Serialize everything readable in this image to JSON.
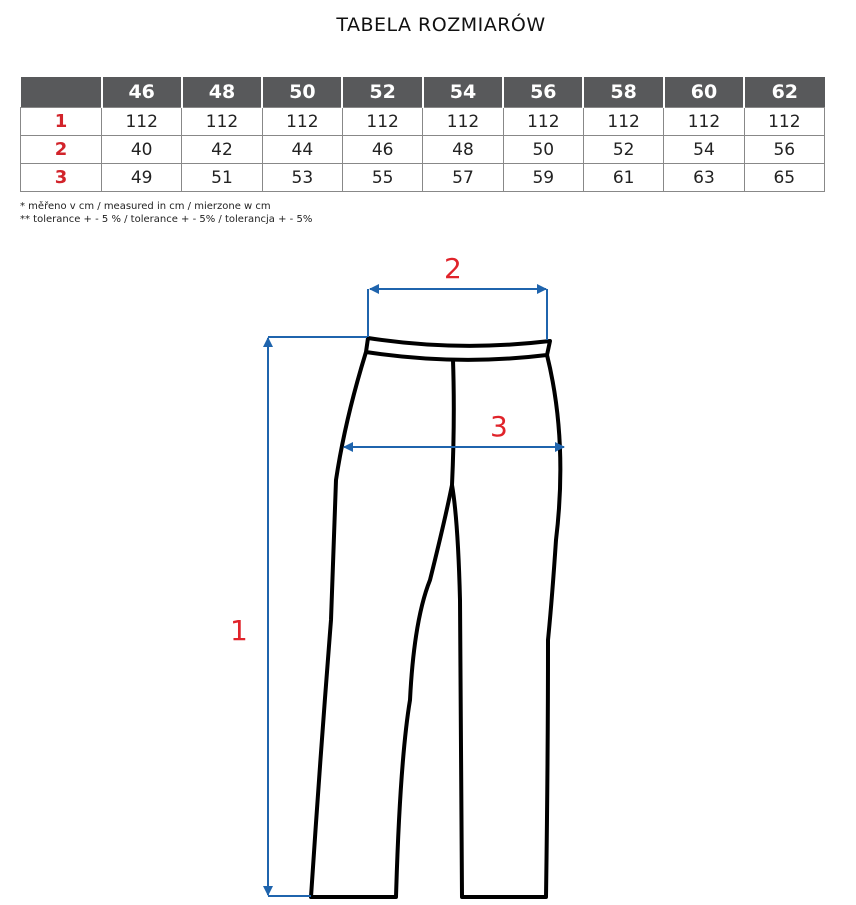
{
  "title": "TABELA ROZMIARÓW",
  "table": {
    "sizes": [
      "46",
      "48",
      "50",
      "52",
      "54",
      "56",
      "58",
      "60",
      "62"
    ],
    "rows": [
      {
        "label": "1",
        "values": [
          "112",
          "112",
          "112",
          "112",
          "112",
          "112",
          "112",
          "112",
          "112"
        ]
      },
      {
        "label": "2",
        "values": [
          "40",
          "42",
          "44",
          "46",
          "48",
          "50",
          "52",
          "54",
          "56"
        ]
      },
      {
        "label": "3",
        "values": [
          "49",
          "51",
          "53",
          "55",
          "57",
          "59",
          "61",
          "63",
          "65"
        ]
      }
    ]
  },
  "notes": [
    "* měřeno v cm / measured in cm / mierzone w cm",
    "** tolerance + - 5 % / tolerance + - 5% / tolerancja + - 5%"
  ],
  "diagram": {
    "labels": {
      "length": "1",
      "waist": "2",
      "hip": "3"
    },
    "colors": {
      "arrow": "#1f64ad",
      "label": "#e0232a",
      "header": "#58595b"
    }
  }
}
